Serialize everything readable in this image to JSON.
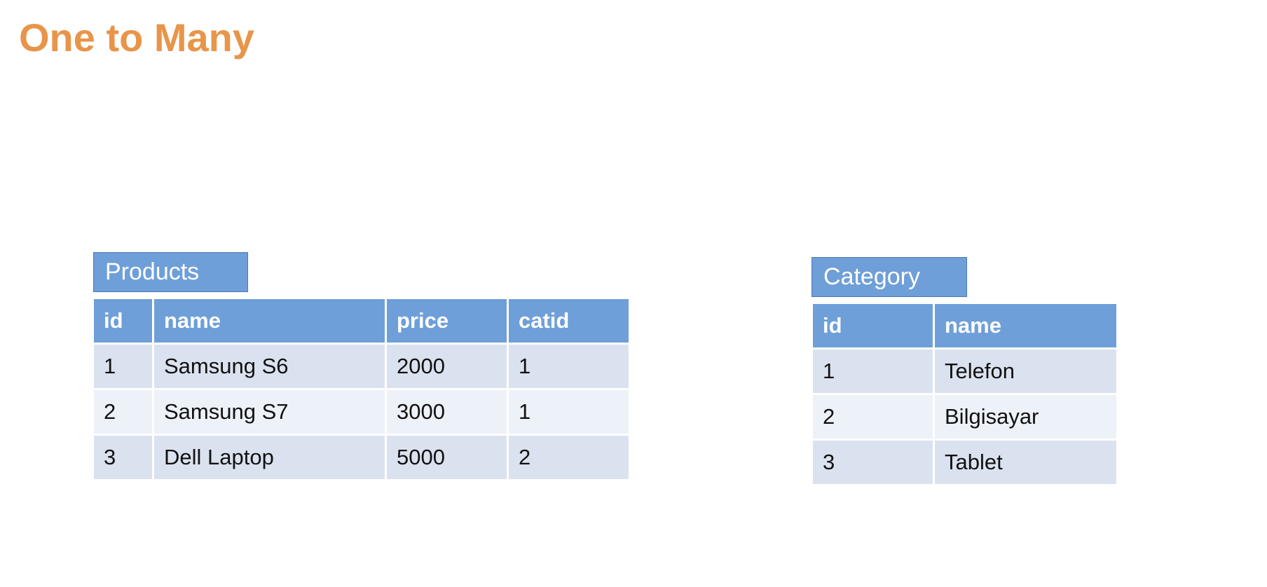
{
  "title": "One to Many",
  "colors": {
    "title": "#E8954A",
    "header_fill": "#6F9FD8",
    "row_dark": "#DBE2EF",
    "row_light": "#EDF1F8"
  },
  "products": {
    "label": "Products",
    "columns": [
      "id",
      "name",
      "price",
      "catid"
    ],
    "rows": [
      [
        "1",
        "Samsung S6",
        "2000",
        "1"
      ],
      [
        "2",
        "Samsung S7",
        "3000",
        "1"
      ],
      [
        "3",
        "Dell Laptop",
        "5000",
        "2"
      ]
    ]
  },
  "category": {
    "label": "Category",
    "columns": [
      "id",
      "name"
    ],
    "rows": [
      [
        "1",
        "Telefon"
      ],
      [
        "2",
        "Bilgisayar"
      ],
      [
        "3",
        "Tablet"
      ]
    ]
  }
}
